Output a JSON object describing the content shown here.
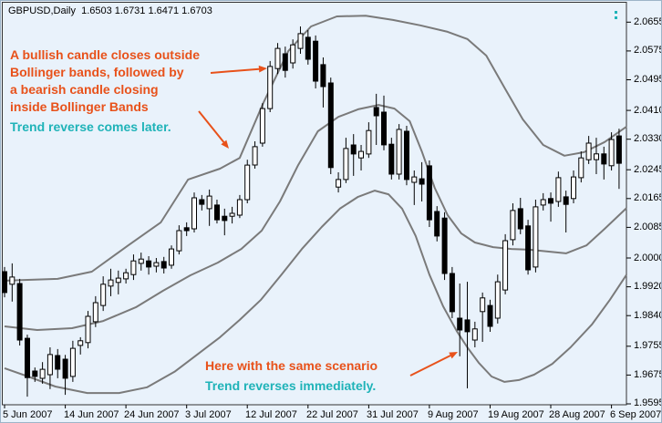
{
  "window": {
    "chart_label": "GBPUSD,Daily  1.6503 1.6731 1.6471 1.6703"
  },
  "annotations": {
    "note1_lines": [
      "A bullish candle closes outside",
      "Bollinger bands, followed by",
      "a bearish candle closing",
      "inside Bollinger Bands"
    ],
    "note1_sub": "Trend reverse comes later.",
    "note2": "Here with the same scenario",
    "note2_sub": "Trend reverses immediately."
  },
  "colors": {
    "background": "#e9f2fb",
    "candle_up_fill": "#ffffff",
    "candle_down_fill": "#000000",
    "candle_outline": "#000000",
    "band": "#7a7a7a",
    "annotation_orange": "#e8511a",
    "annotation_teal": "#1fb3b8",
    "axis_text": "#000000",
    "border": "#333333"
  },
  "axes": {
    "price_labels": [
      "2.0655",
      "2.0575",
      "2.0495",
      "2.0410",
      "2.0330",
      "2.0245",
      "2.0165",
      "2.0085",
      "2.0000",
      "1.9920",
      "1.9840",
      "1.9755",
      "1.9675",
      "1.9595"
    ],
    "price_values": [
      2.0655,
      2.0575,
      2.0495,
      2.041,
      2.033,
      2.0245,
      2.0165,
      2.0085,
      2.0,
      1.992,
      1.984,
      1.9755,
      1.9675,
      1.9595
    ],
    "date_labels": [
      "5 Jun 2007",
      "14 Jun 2007",
      "24 Jun 2007",
      "3 Jul 2007",
      "12 Jul 2007",
      "22 Jul 2007",
      "31 Jul 2007",
      "9 Aug 2007",
      "19 Aug 2007",
      "28 Aug 2007",
      "6 Sep 2007"
    ],
    "date_tick_indices": [
      0,
      8,
      16,
      24,
      32,
      40,
      48,
      56,
      64,
      72,
      80
    ]
  },
  "chart_data": {
    "type": "candlestick",
    "symbol": "GBPUSD",
    "timeframe": "Daily",
    "title": "GBPUSD,Daily",
    "quote": {
      "open": "1.6503",
      "high": "1.6731",
      "low": "1.6471",
      "close": "1.6703"
    },
    "indicator": "Bollinger Bands",
    "ylim": [
      1.954,
      2.07
    ],
    "grid": false,
    "legend": "none",
    "candles_ohlc": [
      [
        1.9962,
        1.9975,
        1.9891,
        1.9904
      ],
      [
        1.9927,
        1.9985,
        1.9879,
        1.9947
      ],
      [
        1.9929,
        1.9942,
        1.9757,
        1.9772
      ],
      [
        1.9777,
        1.9787,
        1.9615,
        1.9668
      ],
      [
        1.9686,
        1.9696,
        1.9656,
        1.9671
      ],
      [
        1.9666,
        1.9711,
        1.9651,
        1.9691
      ],
      [
        1.9676,
        1.9752,
        1.9636,
        1.9732
      ],
      [
        1.9729,
        1.9747,
        1.9666,
        1.9691
      ],
      [
        1.9719,
        1.9731,
        1.962,
        1.9666
      ],
      [
        1.9671,
        1.977,
        1.9656,
        1.9749
      ],
      [
        1.9757,
        1.978,
        1.9732,
        1.977
      ],
      [
        1.9765,
        1.9853,
        1.9749,
        1.9838
      ],
      [
        1.9823,
        1.9894,
        1.9808,
        1.9876
      ],
      [
        1.9868,
        1.9949,
        1.9853,
        1.9927
      ],
      [
        1.9922,
        1.997,
        1.9894,
        1.9939
      ],
      [
        1.9932,
        1.9965,
        1.9899,
        1.9944
      ],
      [
        1.9942,
        1.997,
        1.9929,
        1.9959
      ],
      [
        1.9954,
        2.001,
        1.9939,
        1.9992
      ],
      [
        1.9985,
        2.0015,
        1.9965,
        1.9997
      ],
      [
        1.9992,
        2.0005,
        1.9954,
        1.9975
      ],
      [
        1.9977,
        2.0,
        1.996,
        1.9987
      ],
      [
        1.999,
        2.0003,
        1.9957,
        1.9972
      ],
      [
        1.998,
        2.0035,
        1.997,
        2.0025
      ],
      [
        2.002,
        2.0091,
        2.001,
        2.0076
      ],
      [
        2.0084,
        2.0099,
        2.0061,
        2.0076
      ],
      [
        2.0081,
        2.0182,
        2.0071,
        2.0167
      ],
      [
        2.0162,
        2.0175,
        2.0132,
        2.0149
      ],
      [
        2.0137,
        2.019,
        2.0089,
        2.0172
      ],
      [
        2.0147,
        2.0162,
        2.0096,
        2.0106
      ],
      [
        2.0116,
        2.0137,
        2.0063,
        2.0104
      ],
      [
        2.0116,
        2.0142,
        2.0096,
        2.0124
      ],
      [
        2.0119,
        2.0175,
        2.0111,
        2.0162
      ],
      [
        2.0162,
        2.0273,
        2.0152,
        2.0258
      ],
      [
        2.0258,
        2.0324,
        2.0248,
        2.0309
      ],
      [
        2.0319,
        2.043,
        2.0309,
        2.0415
      ],
      [
        2.0415,
        2.0547,
        2.0405,
        2.0532
      ],
      [
        2.0526,
        2.0597,
        2.0511,
        2.0582
      ],
      [
        2.0567,
        2.0587,
        2.0501,
        2.0521
      ],
      [
        2.0542,
        2.0607,
        2.0526,
        2.0592
      ],
      [
        2.0582,
        2.0643,
        2.0567,
        2.0623
      ],
      [
        2.0613,
        2.0633,
        2.0537,
        2.0552
      ],
      [
        2.0602,
        2.0618,
        2.0471,
        2.0491
      ],
      [
        2.0537,
        2.0557,
        2.0418,
        2.0476
      ],
      [
        2.0486,
        2.0501,
        2.0233,
        2.0251
      ],
      [
        2.0197,
        2.0238,
        2.0182,
        2.0218
      ],
      [
        2.0218,
        2.0334,
        2.0208,
        2.0304
      ],
      [
        2.0314,
        2.0344,
        2.0228,
        2.0289
      ],
      [
        2.0278,
        2.0314,
        2.0243,
        2.0296
      ],
      [
        2.0289,
        2.0377,
        2.0278,
        2.0354
      ],
      [
        2.0418,
        2.0456,
        2.0314,
        2.0395
      ],
      [
        2.0405,
        2.0451,
        2.0299,
        2.0314
      ],
      [
        2.0316,
        2.0334,
        2.0218,
        2.0233
      ],
      [
        2.0233,
        2.0372,
        2.0218,
        2.0357
      ],
      [
        2.0352,
        2.0367,
        2.0202,
        2.0218
      ],
      [
        2.021,
        2.0243,
        2.0147,
        2.0225
      ],
      [
        2.022,
        2.0266,
        2.0157,
        2.0205
      ],
      [
        2.0256,
        2.0271,
        2.0086,
        2.0106
      ],
      [
        2.0129,
        2.0144,
        2.0046,
        2.0061
      ],
      [
        2.0111,
        2.0127,
        1.9939,
        1.9957
      ],
      [
        1.9957,
        1.9975,
        1.9833,
        1.9851
      ],
      [
        1.9833,
        1.9929,
        1.9727,
        1.98
      ],
      [
        1.9828,
        1.9934,
        1.9638,
        1.9795
      ],
      [
        1.9772,
        1.9823,
        1.9752,
        1.9803
      ],
      [
        1.9851,
        1.9904,
        1.9767,
        1.9889
      ],
      [
        1.9868,
        1.9884,
        1.9795,
        1.981
      ],
      [
        1.9833,
        1.9954,
        1.9818,
        1.9934
      ],
      [
        1.9911,
        2.0066,
        1.9899,
        2.0048
      ],
      [
        2.0051,
        2.0152,
        2.0035,
        2.0132
      ],
      [
        2.0137,
        2.0167,
        2.0066,
        2.0081
      ],
      [
        2.0089,
        2.0106,
        1.9954,
        1.9967
      ],
      [
        1.9975,
        2.0162,
        1.996,
        2.0142
      ],
      [
        2.0147,
        2.018,
        2.0132,
        2.0162
      ],
      [
        2.0165,
        2.0182,
        2.0101,
        2.0152
      ],
      [
        2.0157,
        2.024,
        2.0142,
        2.0223
      ],
      [
        2.017,
        2.0187,
        2.0071,
        2.0149
      ],
      [
        2.0165,
        2.0243,
        2.0152,
        2.0225
      ],
      [
        2.0223,
        2.0296,
        2.021,
        2.0278
      ],
      [
        2.0273,
        2.0339,
        2.0261,
        2.0319
      ],
      [
        2.0273,
        2.0334,
        2.0233,
        2.0289
      ],
      [
        2.0289,
        2.0309,
        2.0218,
        2.0261
      ],
      [
        2.0256,
        2.0349,
        2.0243,
        2.0329
      ],
      [
        2.0339,
        2.0359,
        2.0192,
        2.0263
      ]
    ],
    "bands": {
      "upper": [
        [
          0,
          1.9937
        ],
        [
          7,
          1.9942
        ],
        [
          11.5,
          1.9962
        ],
        [
          16.3,
          2.0035
        ],
        [
          20.6,
          2.0099
        ],
        [
          24.2,
          2.0218
        ],
        [
          28.4,
          2.0248
        ],
        [
          31,
          2.0278
        ],
        [
          34.1,
          2.043
        ],
        [
          37.4,
          2.0575
        ],
        [
          40.4,
          2.0643
        ],
        [
          43.8,
          2.0671
        ],
        [
          47.6,
          2.0673
        ],
        [
          51.2,
          2.0661
        ],
        [
          54.8,
          2.0646
        ],
        [
          58.4,
          2.0628
        ],
        [
          61,
          2.0608
        ],
        [
          63.5,
          2.0562
        ],
        [
          65.9,
          2.0473
        ],
        [
          68.3,
          2.0385
        ],
        [
          71,
          2.0314
        ],
        [
          73.8,
          2.0284
        ],
        [
          76.4,
          2.0294
        ],
        [
          79.1,
          2.0322
        ],
        [
          82,
          2.0365
        ]
      ],
      "middle": [
        [
          0,
          1.981
        ],
        [
          4.3,
          1.98
        ],
        [
          8.9,
          1.9805
        ],
        [
          13,
          1.9825
        ],
        [
          17.3,
          1.9863
        ],
        [
          20.9,
          1.9909
        ],
        [
          24.5,
          1.9952
        ],
        [
          28.1,
          1.9987
        ],
        [
          31.2,
          2.0025
        ],
        [
          33.9,
          2.0076
        ],
        [
          36.3,
          2.0157
        ],
        [
          38.7,
          2.0258
        ],
        [
          41.3,
          2.0352
        ],
        [
          44,
          2.0392
        ],
        [
          46.6,
          2.0413
        ],
        [
          49.3,
          2.0425
        ],
        [
          51.4,
          2.0415
        ],
        [
          53.4,
          2.038
        ],
        [
          55,
          2.0296
        ],
        [
          56.7,
          2.0195
        ],
        [
          58.4,
          2.0119
        ],
        [
          60.2,
          2.0068
        ],
        [
          62,
          2.0043
        ],
        [
          64.4,
          2.003
        ],
        [
          66.8,
          2.0025
        ],
        [
          69.2,
          2.0023
        ],
        [
          71.6,
          2.0018
        ],
        [
          74,
          2.0013
        ],
        [
          76.7,
          2.0035
        ],
        [
          79.1,
          2.0081
        ],
        [
          82,
          2.0139
        ]
      ],
      "lower": [
        [
          0,
          1.9694
        ],
        [
          3.1,
          1.9671
        ],
        [
          6.7,
          1.9643
        ],
        [
          10.9,
          1.9625
        ],
        [
          15.1,
          1.9625
        ],
        [
          18.8,
          1.9641
        ],
        [
          22.4,
          1.9684
        ],
        [
          25.4,
          1.9732
        ],
        [
          28.4,
          1.978
        ],
        [
          31,
          1.9828
        ],
        [
          33.8,
          1.9884
        ],
        [
          36.5,
          1.9954
        ],
        [
          39.2,
          2.0025
        ],
        [
          41.8,
          2.0086
        ],
        [
          44.2,
          2.0137
        ],
        [
          46.6,
          2.017
        ],
        [
          48.8,
          2.0187
        ],
        [
          50.6,
          2.0177
        ],
        [
          52.4,
          2.0137
        ],
        [
          54.2,
          2.0061
        ],
        [
          56,
          1.9954
        ],
        [
          57.8,
          1.9866
        ],
        [
          59.6,
          1.9797
        ],
        [
          61,
          1.9752
        ],
        [
          62.5,
          1.9709
        ],
        [
          64.2,
          1.9671
        ],
        [
          65.9,
          1.9656
        ],
        [
          67.8,
          1.9661
        ],
        [
          69.8,
          1.9676
        ],
        [
          72.2,
          1.9706
        ],
        [
          74.6,
          1.9752
        ],
        [
          77.4,
          1.9815
        ],
        [
          79.8,
          1.9884
        ],
        [
          82,
          1.9954
        ]
      ]
    },
    "arrows": [
      {
        "name": "outside-close-arrow",
        "from": [
          230,
          79
        ],
        "to": [
          292,
          74
        ]
      },
      {
        "name": "reverse-later-arrow",
        "from": [
          217,
          121
        ],
        "to": [
          250,
          162
        ]
      },
      {
        "name": "immediate-reverse-arrow",
        "from": [
          449,
          411
        ],
        "to": [
          501,
          385
        ]
      }
    ]
  }
}
